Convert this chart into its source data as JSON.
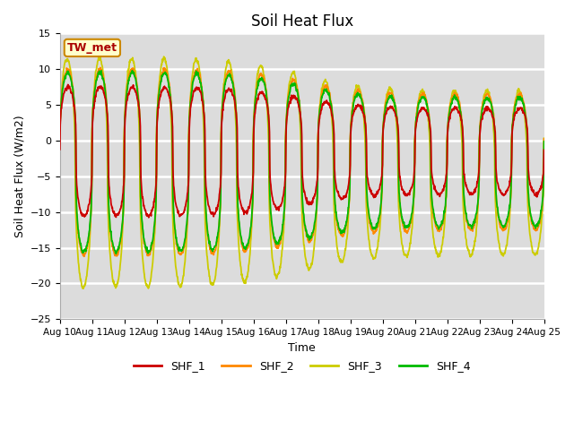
{
  "title": "Soil Heat Flux",
  "ylabel": "Soil Heat Flux (W/m2)",
  "xlabel": "Time",
  "ylim": [
    -25,
    15
  ],
  "bg_color": "#dcdcdc",
  "grid_color": "white",
  "legend_label": "TW_met",
  "series_labels": [
    "SHF_1",
    "SHF_2",
    "SHF_3",
    "SHF_4"
  ],
  "series_colors": [
    "#cc0000",
    "#ff8800",
    "#cccc00",
    "#00bb00"
  ],
  "series_linewidths": [
    1.3,
    1.3,
    1.3,
    1.3
  ],
  "x_tick_labels": [
    "Aug 10",
    "Aug 11",
    "Aug 12",
    "Aug 13",
    "Aug 14",
    "Aug 15",
    "Aug 16",
    "Aug 17",
    "Aug 18",
    "Aug 19",
    "Aug 20",
    "Aug 21",
    "Aug 22",
    "Aug 23",
    "Aug 24",
    "Aug 25"
  ],
  "n_days": 15,
  "points_per_day": 96,
  "seed": 0
}
